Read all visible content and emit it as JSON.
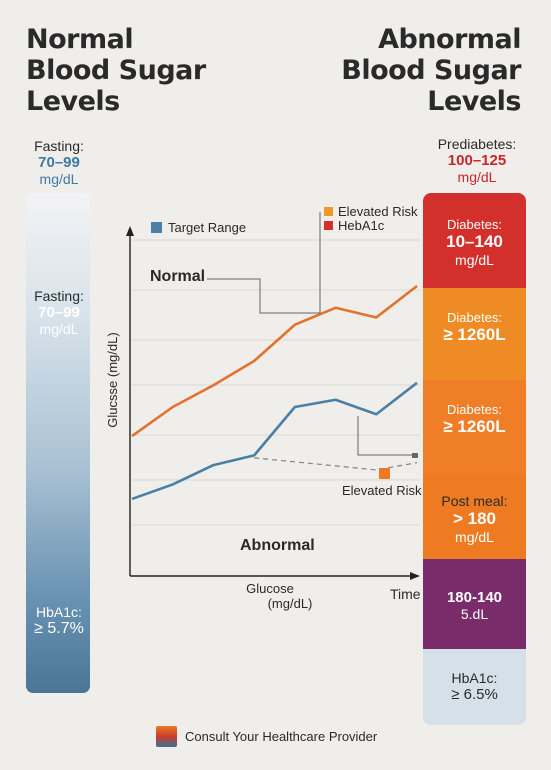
{
  "titles": {
    "left": [
      "Normal",
      "Blood Sugar",
      "Levels"
    ],
    "right": [
      "Abnormal",
      "Blood Sugar",
      "Levels"
    ]
  },
  "left_column": {
    "top": {
      "label": "Fasting:",
      "value": "70–99",
      "unit": "mg/dL"
    },
    "mid": {
      "label": "Fasting:",
      "value": "70–99",
      "unit": "mg/dL"
    },
    "bottom": {
      "label": "HbA1c:",
      "value": "≥ 5.7%"
    }
  },
  "right_column": {
    "top": {
      "label": "Prediabetes:",
      "value": "100–125",
      "unit": "mg/dL"
    },
    "segments": [
      {
        "label": "Diabetes:",
        "value": "10–140",
        "unit": "mg/dL",
        "color": "#d3302c"
      },
      {
        "label": "Diabetes:",
        "value": "≥ 1260L",
        "unit": "",
        "color": "#ee8a24"
      },
      {
        "label": "Diabetes:",
        "value": "≥ 1260L",
        "unit": "",
        "color": "#f07a26"
      },
      {
        "label": "Post meal:",
        "value": "> 180",
        "unit": "mg/dL",
        "color": "#ee7d22"
      },
      {
        "label": "180-140",
        "value": "5.dL",
        "unit": "",
        "color": "#7a2c6a"
      },
      {
        "label": "HbA1c:",
        "value": "≥ 6.5%",
        "unit": "",
        "color": "#d6e0e8"
      }
    ]
  },
  "legend": {
    "target_range": "Target Range",
    "elevated_risk": "Elevated Risk",
    "heba1c": "HebA1c"
  },
  "annotations": {
    "normal": "Normal",
    "abnormal": "Abnormal",
    "elevated_risk": "Elevated Risk"
  },
  "footer": "Consult Your Healthcare Provider",
  "colors": {
    "orange": "#e2722c",
    "blue": "#4a7fa6",
    "red": "#d3302c",
    "purple": "#7a2c6a"
  },
  "chart_data": {
    "type": "line",
    "xlabel": "Glucose\n(mg/dL)",
    "x_end_label": "Time",
    "ylabel": "Glucsse (mg/dL)",
    "ylim": [
      0,
      10
    ],
    "grid": true,
    "series": [
      {
        "color": "#e2722c",
        "x": [
          0,
          1,
          2,
          3,
          4,
          5,
          6,
          7
        ],
        "y": [
          3.8,
          5.0,
          5.9,
          6.9,
          8.4,
          9.1,
          8.7,
          10.0
        ]
      },
      {
        "color": "#4a7fa6",
        "x": [
          0,
          1,
          2,
          3,
          4,
          5,
          6,
          7
        ],
        "y": [
          1.2,
          1.8,
          2.6,
          3.0,
          5.0,
          5.3,
          4.7,
          6.0
        ]
      },
      {
        "color": "#8a8a8a",
        "style": "dashed",
        "x": [
          3,
          6,
          7
        ],
        "y": [
          2.9,
          2.4,
          2.7
        ]
      }
    ]
  }
}
